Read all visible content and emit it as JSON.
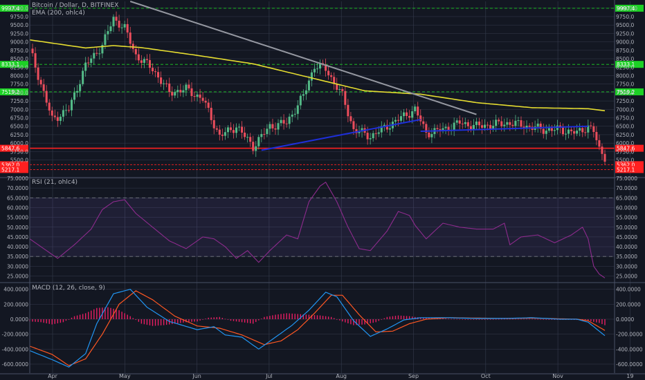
{
  "symbol_title": "Bitcoin / Dollar, D, BITFINEX",
  "ema_label": "EMA (200, ohlc4)",
  "rsi_label": "RSI (21, ohlc4)",
  "macd_label": "MACD (12, 26, close, 9)",
  "colors": {
    "background": "#131722",
    "grid": "#363c4e",
    "up": "#53b987",
    "down": "#eb4d5c",
    "ema": "#e6dd30",
    "trendline_gray": "#9598a1",
    "trendline_blue": "#1e2fd8",
    "support_red": "#ff2020",
    "resistance_green": "#1dd125",
    "rsi": "#8e2b8e",
    "macd": "#2196f3",
    "signal": "#ff5722",
    "histogram": "#e91e63"
  },
  "chart_data": [
    {
      "type": "candlestick",
      "title": "Bitcoin / Dollar, D, BITFINEX",
      "x_ticks": [
        "Apr",
        "May",
        "Jun",
        "Jul",
        "Aug",
        "Sep",
        "Oct",
        "Nov",
        "19"
      ],
      "ylim": [
        5000,
        10200
      ],
      "y_ticks": [
        "10250.0",
        "10000.0",
        "9750.0",
        "9500.0",
        "9250.0",
        "9000.0",
        "8750.0",
        "8500.0",
        "8250.0",
        "8000.0",
        "7750.0",
        "7500.0",
        "7250.0",
        "7000.0",
        "6750.0",
        "6500.0",
        "6250.0",
        "6000.0",
        "5750.0",
        "5500.0"
      ],
      "close_points": [
        [
          0,
          8800
        ],
        [
          8,
          6700
        ],
        [
          14,
          7000
        ],
        [
          20,
          8300
        ],
        [
          26,
          8900
        ],
        [
          30,
          9700
        ],
        [
          34,
          9400
        ],
        [
          38,
          8600
        ],
        [
          44,
          8200
        ],
        [
          50,
          7500
        ],
        [
          56,
          7600
        ],
        [
          62,
          7300
        ],
        [
          68,
          6200
        ],
        [
          74,
          6500
        ],
        [
          80,
          5900
        ],
        [
          86,
          6500
        ],
        [
          92,
          6600
        ],
        [
          98,
          7400
        ],
        [
          102,
          8300
        ],
        [
          106,
          8200
        ],
        [
          112,
          7400
        ],
        [
          116,
          6400
        ],
        [
          122,
          6200
        ],
        [
          128,
          6500
        ],
        [
          134,
          6800
        ],
        [
          138,
          7000
        ],
        [
          142,
          6300
        ],
        [
          148,
          6400
        ],
        [
          154,
          6600
        ],
        [
          160,
          6500
        ],
        [
          166,
          6550
        ],
        [
          172,
          6600
        ],
        [
          178,
          6500
        ],
        [
          184,
          6400
        ],
        [
          190,
          6400
        ],
        [
          196,
          6300
        ],
        [
          200,
          6500
        ],
        [
          202,
          6350
        ],
        [
          204,
          5800
        ],
        [
          206,
          5600
        ]
      ],
      "ema_points": [
        [
          0,
          9060
        ],
        [
          20,
          8820
        ],
        [
          30,
          8890
        ],
        [
          40,
          8830
        ],
        [
          60,
          8600
        ],
        [
          80,
          8350
        ],
        [
          100,
          7950
        ],
        [
          120,
          7550
        ],
        [
          140,
          7450
        ],
        [
          160,
          7200
        ],
        [
          180,
          7050
        ],
        [
          200,
          7020
        ],
        [
          206,
          6960
        ]
      ],
      "horizontal_levels": [
        {
          "value": 9997.4,
          "label": "9997.4",
          "color": "green"
        },
        {
          "value": 8333.1,
          "label": "8333.1",
          "color": "green"
        },
        {
          "value": 7519.2,
          "label": "7519.2",
          "color": "green"
        },
        {
          "value": 5847.6,
          "label": "5847.6",
          "color": "red"
        },
        {
          "value": 5362.0,
          "label": "5362.0",
          "color": "red"
        },
        {
          "value": 5217.1,
          "label": "5217.1",
          "color": "red"
        }
      ],
      "trendlines": [
        {
          "name": "descending resistance",
          "from": [
            36,
            10200
          ],
          "to": [
            160,
            6850
          ]
        },
        {
          "name": "rising support 1",
          "from": [
            83,
            5790
          ],
          "to": [
            140,
            6700
          ]
        },
        {
          "name": "rising support 2",
          "from": [
            140,
            6350
          ],
          "to": [
            200,
            6500
          ]
        }
      ]
    },
    {
      "type": "line",
      "title": "RSI (21, ohlc4)",
      "ylim": [
        22,
        75
      ],
      "y_ticks": [
        "75.0000",
        "70.0000",
        "65.0000",
        "60.0000",
        "55.0000",
        "50.0000",
        "45.0000",
        "40.0000",
        "35.0000",
        "30.0000",
        "25.0000"
      ],
      "band": [
        35,
        65
      ],
      "points": [
        [
          0,
          44
        ],
        [
          6,
          38
        ],
        [
          10,
          34
        ],
        [
          16,
          41
        ],
        [
          22,
          49
        ],
        [
          26,
          59
        ],
        [
          30,
          63
        ],
        [
          34,
          64
        ],
        [
          38,
          57
        ],
        [
          44,
          50
        ],
        [
          50,
          43
        ],
        [
          56,
          39
        ],
        [
          62,
          45
        ],
        [
          66,
          44
        ],
        [
          70,
          40
        ],
        [
          74,
          34
        ],
        [
          78,
          38
        ],
        [
          82,
          32
        ],
        [
          86,
          38
        ],
        [
          92,
          46
        ],
        [
          96,
          44
        ],
        [
          100,
          63
        ],
        [
          104,
          71
        ],
        [
          106,
          73
        ],
        [
          110,
          63
        ],
        [
          114,
          50
        ],
        [
          118,
          39
        ],
        [
          122,
          38
        ],
        [
          128,
          48
        ],
        [
          132,
          58
        ],
        [
          136,
          56
        ],
        [
          138,
          51
        ],
        [
          142,
          44
        ],
        [
          148,
          52
        ],
        [
          154,
          50
        ],
        [
          160,
          49
        ],
        [
          166,
          49
        ],
        [
          170,
          52
        ],
        [
          172,
          41
        ],
        [
          176,
          45
        ],
        [
          182,
          46
        ],
        [
          188,
          42
        ],
        [
          194,
          46
        ],
        [
          198,
          50
        ],
        [
          200,
          44
        ],
        [
          202,
          30
        ],
        [
          204,
          26
        ],
        [
          206,
          24
        ]
      ]
    },
    {
      "type": "line",
      "title": "MACD (12, 26, close, 9)",
      "ylim": [
        -720,
        480
      ],
      "y_ticks": [
        "400.0000",
        "200.0000",
        "0.0000",
        "-200.0000",
        "-400.0000",
        "-600.0000"
      ],
      "series": [
        {
          "name": "MACD",
          "points": [
            [
              0,
              -420
            ],
            [
              8,
              -540
            ],
            [
              14,
              -640
            ],
            [
              20,
              -460
            ],
            [
              24,
              -60
            ],
            [
              30,
              340
            ],
            [
              36,
              400
            ],
            [
              42,
              160
            ],
            [
              50,
              -30
            ],
            [
              60,
              -140
            ],
            [
              66,
              -100
            ],
            [
              70,
              -210
            ],
            [
              76,
              -240
            ],
            [
              82,
              -400
            ],
            [
              88,
              -240
            ],
            [
              94,
              -80
            ],
            [
              100,
              120
            ],
            [
              106,
              360
            ],
            [
              110,
              300
            ],
            [
              116,
              -20
            ],
            [
              122,
              -230
            ],
            [
              128,
              -130
            ],
            [
              134,
              -10
            ],
            [
              140,
              20
            ],
            [
              150,
              20
            ],
            [
              160,
              10
            ],
            [
              170,
              10
            ],
            [
              180,
              20
            ],
            [
              190,
              0
            ],
            [
              196,
              0
            ],
            [
              200,
              -40
            ],
            [
              206,
              -220
            ]
          ]
        },
        {
          "name": "Signal",
          "points": [
            [
              0,
              -360
            ],
            [
              8,
              -470
            ],
            [
              14,
              -620
            ],
            [
              20,
              -530
            ],
            [
              26,
              -200
            ],
            [
              32,
              200
            ],
            [
              38,
              380
            ],
            [
              44,
              260
            ],
            [
              52,
              40
            ],
            [
              60,
              -90
            ],
            [
              68,
              -120
            ],
            [
              76,
              -210
            ],
            [
              84,
              -340
            ],
            [
              90,
              -290
            ],
            [
              96,
              -140
            ],
            [
              102,
              80
            ],
            [
              108,
              320
            ],
            [
              112,
              320
            ],
            [
              118,
              60
            ],
            [
              124,
              -170
            ],
            [
              130,
              -160
            ],
            [
              136,
              -60
            ],
            [
              142,
              0
            ],
            [
              150,
              20
            ],
            [
              160,
              15
            ],
            [
              170,
              10
            ],
            [
              180,
              15
            ],
            [
              190,
              5
            ],
            [
              196,
              0
            ],
            [
              200,
              -20
            ],
            [
              206,
              -150
            ]
          ]
        }
      ],
      "histogram": [
        [
          0,
          -30
        ],
        [
          4,
          -40
        ],
        [
          8,
          -70
        ],
        [
          12,
          -40
        ],
        [
          16,
          40
        ],
        [
          20,
          80
        ],
        [
          24,
          150
        ],
        [
          28,
          160
        ],
        [
          32,
          120
        ],
        [
          36,
          40
        ],
        [
          40,
          -60
        ],
        [
          44,
          -90
        ],
        [
          48,
          -80
        ],
        [
          52,
          -60
        ],
        [
          56,
          -40
        ],
        [
          60,
          -30
        ],
        [
          64,
          20
        ],
        [
          68,
          30
        ],
        [
          72,
          -20
        ],
        [
          76,
          -40
        ],
        [
          80,
          -60
        ],
        [
          84,
          30
        ],
        [
          88,
          60
        ],
        [
          92,
          80
        ],
        [
          96,
          70
        ],
        [
          100,
          60
        ],
        [
          104,
          50
        ],
        [
          108,
          30
        ],
        [
          112,
          -30
        ],
        [
          116,
          -80
        ],
        [
          120,
          -70
        ],
        [
          124,
          -40
        ],
        [
          128,
          30
        ],
        [
          132,
          50
        ],
        [
          136,
          40
        ],
        [
          140,
          20
        ],
        [
          146,
          10
        ],
        [
          152,
          5
        ],
        [
          160,
          -5
        ],
        [
          170,
          5
        ],
        [
          180,
          5
        ],
        [
          190,
          -5
        ],
        [
          196,
          -10
        ],
        [
          200,
          -20
        ],
        [
          204,
          -50
        ],
        [
          206,
          -80
        ]
      ]
    }
  ]
}
